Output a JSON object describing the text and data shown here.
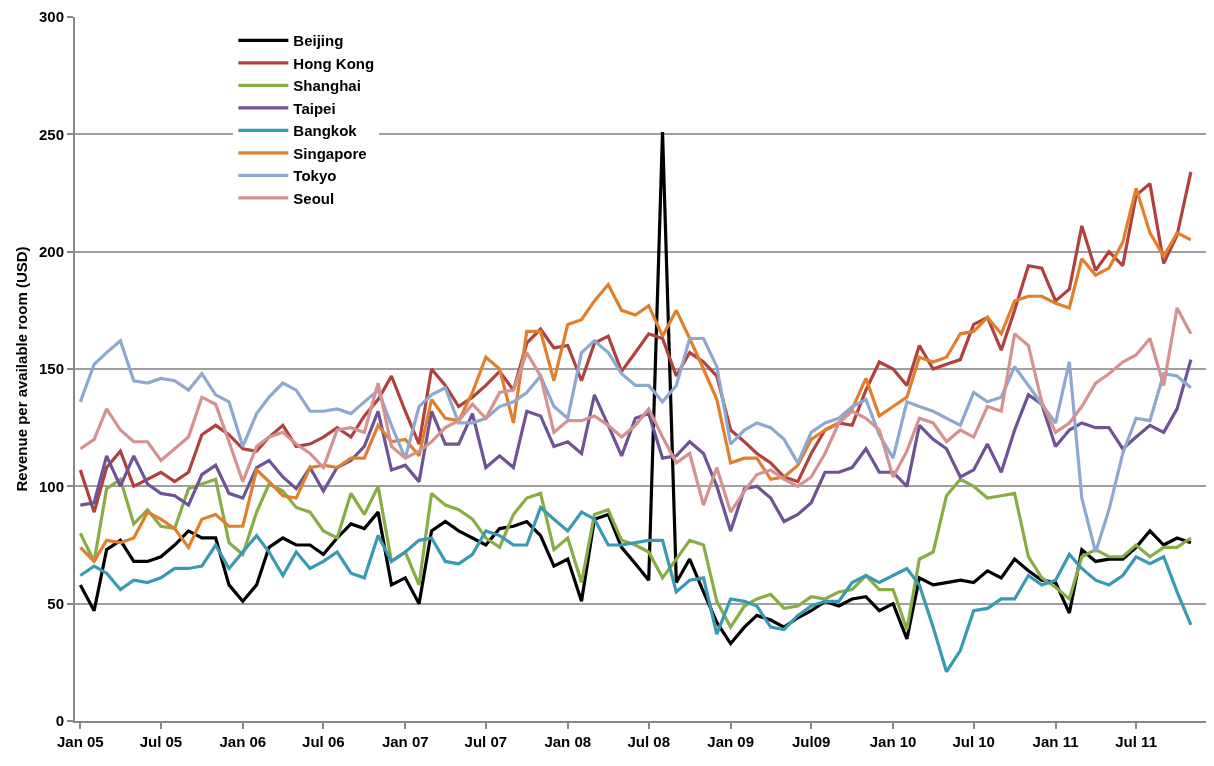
{
  "chart_data": {
    "type": "line",
    "ylabel": "Revenue per available room (USD)",
    "x": [
      "2005-01",
      "2005-02",
      "2005-03",
      "2005-04",
      "2005-05",
      "2005-06",
      "2005-07",
      "2005-08",
      "2005-09",
      "2005-10",
      "2005-11",
      "2005-12",
      "2006-01",
      "2006-02",
      "2006-03",
      "2006-04",
      "2006-05",
      "2006-06",
      "2006-07",
      "2006-08",
      "2006-09",
      "2006-10",
      "2006-11",
      "2006-12",
      "2007-01",
      "2007-02",
      "2007-03",
      "2007-04",
      "2007-05",
      "2007-06",
      "2007-07",
      "2007-08",
      "2007-09",
      "2007-10",
      "2007-11",
      "2007-12",
      "2008-01",
      "2008-02",
      "2008-03",
      "2008-04",
      "2008-05",
      "2008-06",
      "2008-07",
      "2008-08",
      "2008-09",
      "2008-10",
      "2008-11",
      "2008-12",
      "2009-01",
      "2009-02",
      "2009-03",
      "2009-04",
      "2009-05",
      "2009-06",
      "2009-07",
      "2009-08",
      "2009-09",
      "2009-10",
      "2009-11",
      "2009-12",
      "2010-01",
      "2010-02",
      "2010-03",
      "2010-04",
      "2010-05",
      "2010-06",
      "2010-07",
      "2010-08",
      "2010-09",
      "2010-10",
      "2010-11",
      "2010-12",
      "2011-01",
      "2011-02",
      "2011-03",
      "2011-04",
      "2011-05",
      "2011-06",
      "2011-07",
      "2011-08",
      "2011-09",
      "2011-10",
      "2011-11"
    ],
    "series": [
      {
        "name": "Beijing",
        "color": "#000000",
        "values": [
          58,
          47,
          73,
          77,
          68,
          68,
          70,
          75,
          81,
          78,
          78,
          58,
          51,
          58,
          74,
          78,
          75,
          75,
          71,
          78,
          84,
          82,
          89,
          58,
          61,
          50,
          81,
          85,
          81,
          78,
          75,
          82,
          83,
          85,
          79,
          66,
          69,
          51,
          86,
          88,
          74,
          67,
          60,
          251,
          59,
          69,
          55,
          42,
          33,
          40,
          45,
          43,
          40,
          44,
          47,
          51,
          49,
          52,
          53,
          47,
          50,
          35,
          61,
          58,
          59,
          60,
          59,
          64,
          61,
          69,
          64,
          60,
          59,
          46,
          73,
          68,
          69,
          69,
          74,
          81,
          75,
          78,
          76
        ]
      },
      {
        "name": "Hong Kong",
        "color": "#b0413e",
        "values": [
          107,
          89,
          108,
          115,
          100,
          103,
          106,
          102,
          106,
          122,
          126,
          122,
          116,
          115,
          121,
          126,
          117,
          118,
          121,
          125,
          121,
          130,
          137,
          147,
          132,
          118,
          150,
          143,
          134,
          138,
          143,
          149,
          141,
          161,
          167,
          159,
          160,
          145,
          161,
          164,
          149,
          157,
          165,
          163,
          147,
          157,
          153,
          147,
          124,
          119,
          114,
          110,
          104,
          102,
          114,
          124,
          127,
          126,
          141,
          153,
          150,
          143,
          160,
          150,
          152,
          154,
          169,
          172,
          158,
          175,
          194,
          193,
          179,
          184,
          211,
          192,
          200,
          194,
          224,
          229,
          195,
          207,
          234
        ]
      },
      {
        "name": "Shanghai",
        "color": "#8aac46",
        "values": [
          80,
          68,
          99,
          103,
          84,
          90,
          83,
          82,
          99,
          101,
          103,
          76,
          71,
          89,
          101,
          98,
          91,
          89,
          81,
          78,
          97,
          88,
          100,
          68,
          72,
          58,
          97,
          92,
          90,
          86,
          78,
          74,
          88,
          95,
          97,
          73,
          78,
          59,
          88,
          90,
          77,
          75,
          72,
          61,
          69,
          77,
          75,
          51,
          40,
          49,
          52,
          54,
          48,
          49,
          53,
          52,
          55,
          56,
          62,
          56,
          56,
          39,
          69,
          72,
          96,
          103,
          100,
          95,
          96,
          97,
          70,
          61,
          57,
          52,
          70,
          73,
          70,
          70,
          75,
          70,
          74,
          74,
          78
        ]
      },
      {
        "name": "Taipei",
        "color": "#6e5494",
        "values": [
          92,
          93,
          113,
          100,
          113,
          101,
          97,
          96,
          92,
          105,
          109,
          97,
          95,
          108,
          111,
          104,
          99,
          108,
          98,
          108,
          111,
          117,
          132,
          107,
          109,
          102,
          132,
          118,
          118,
          131,
          108,
          113,
          108,
          132,
          130,
          117,
          119,
          114,
          139,
          126,
          113,
          129,
          131,
          112,
          113,
          119,
          114,
          100,
          81,
          99,
          100,
          95,
          85,
          88,
          93,
          106,
          106,
          108,
          116,
          106,
          106,
          100,
          126,
          120,
          116,
          104,
          107,
          118,
          106,
          124,
          139,
          135,
          117,
          124,
          127,
          125,
          125,
          116,
          121,
          126,
          123,
          133,
          154
        ]
      },
      {
        "name": "Bangkok",
        "color": "#3a9ab1",
        "values": [
          62,
          66,
          63,
          56,
          60,
          59,
          61,
          65,
          65,
          66,
          75,
          65,
          72,
          79,
          72,
          62,
          72,
          65,
          68,
          72,
          63,
          61,
          79,
          68,
          72,
          77,
          78,
          68,
          67,
          71,
          81,
          79,
          75,
          75,
          91,
          86,
          81,
          89,
          86,
          75,
          75,
          76,
          77,
          77,
          55,
          60,
          61,
          37,
          52,
          51,
          49,
          40,
          39,
          45,
          49,
          51,
          51,
          59,
          62,
          59,
          62,
          65,
          58,
          40,
          21,
          30,
          47,
          48,
          52,
          52,
          62,
          58,
          60,
          71,
          65,
          60,
          58,
          62,
          70,
          67,
          70,
          55,
          41
        ]
      },
      {
        "name": "Singapore",
        "color": "#e0802f",
        "values": [
          74,
          68,
          77,
          76,
          78,
          89,
          86,
          82,
          74,
          86,
          88,
          83,
          83,
          107,
          102,
          96,
          95,
          108,
          109,
          108,
          112,
          112,
          126,
          119,
          120,
          113,
          137,
          129,
          128,
          140,
          155,
          150,
          127,
          166,
          166,
          145,
          169,
          171,
          179,
          186,
          175,
          173,
          177,
          164,
          175,
          163,
          150,
          137,
          110,
          112,
          112,
          103,
          104,
          109,
          120,
          124,
          127,
          133,
          146,
          130,
          134,
          138,
          155,
          153,
          155,
          165,
          166,
          172,
          165,
          179,
          181,
          181,
          178,
          176,
          197,
          190,
          193,
          204,
          227,
          208,
          198,
          208,
          205
        ]
      },
      {
        "name": "Tokyo",
        "color": "#8ea8d0",
        "values": [
          136,
          152,
          157,
          162,
          145,
          144,
          146,
          145,
          141,
          148,
          139,
          136,
          117,
          131,
          138,
          144,
          141,
          132,
          132,
          133,
          131,
          136,
          141,
          126,
          112,
          134,
          139,
          142,
          127,
          127,
          129,
          134,
          136,
          140,
          147,
          134,
          129,
          157,
          162,
          157,
          148,
          143,
          143,
          136,
          143,
          163,
          163,
          151,
          118,
          124,
          127,
          125,
          120,
          110,
          123,
          127,
          129,
          134,
          137,
          122,
          112,
          136,
          134,
          132,
          129,
          126,
          140,
          136,
          138,
          151,
          143,
          135,
          127,
          153,
          95,
          72,
          90,
          114,
          129,
          128,
          148,
          147,
          142
        ]
      },
      {
        "name": "Seoul",
        "color": "#d49392",
        "values": [
          116,
          120,
          133,
          124,
          119,
          119,
          111,
          116,
          121,
          138,
          135,
          119,
          102,
          117,
          121,
          123,
          118,
          114,
          108,
          124,
          125,
          123,
          144,
          117,
          112,
          115,
          119,
          125,
          128,
          135,
          129,
          140,
          141,
          157,
          147,
          123,
          128,
          128,
          130,
          126,
          121,
          126,
          133,
          121,
          110,
          114,
          92,
          108,
          89,
          98,
          105,
          107,
          103,
          100,
          104,
          114,
          127,
          132,
          129,
          124,
          104,
          115,
          129,
          127,
          119,
          124,
          121,
          134,
          132,
          165,
          160,
          136,
          123,
          127,
          134,
          144,
          148,
          153,
          156,
          163,
          143,
          176,
          165
        ]
      }
    ],
    "xlim": [
      "2004-12-20",
      "2011-12-05"
    ],
    "xticks": [
      {
        "value": "2005-01",
        "label": "Jan 05"
      },
      {
        "value": "2005-07",
        "label": "Jul 05"
      },
      {
        "value": "2006-01",
        "label": "Jan 06"
      },
      {
        "value": "2006-07",
        "label": "Jul 06"
      },
      {
        "value": "2007-01",
        "label": "Jan 07"
      },
      {
        "value": "2007-07",
        "label": "Jul 07"
      },
      {
        "value": "2008-01",
        "label": "Jan 08"
      },
      {
        "value": "2008-07",
        "label": "Jul 08"
      },
      {
        "value": "2009-01",
        "label": "Jan 09"
      },
      {
        "value": "2009-07",
        "label": "Jul09"
      },
      {
        "value": "2010-01",
        "label": "Jan 10"
      },
      {
        "value": "2010-07",
        "label": "Jul 10"
      },
      {
        "value": "2011-01",
        "label": "Jan 11"
      },
      {
        "value": "2011-07",
        "label": "Jul 11"
      }
    ],
    "ylim": [
      0,
      300
    ],
    "yticks": [
      0,
      50,
      100,
      150,
      200,
      250,
      300
    ],
    "grid": "y",
    "legend": "top left",
    "marker": "none",
    "line_style": "solid"
  }
}
